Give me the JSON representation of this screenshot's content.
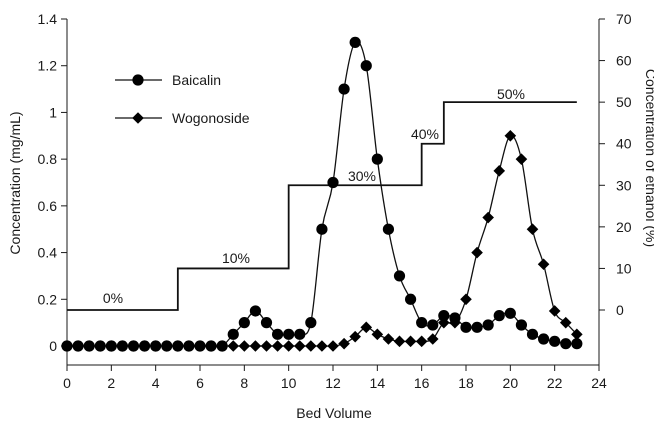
{
  "chart_data": {
    "type": "line",
    "xlabel": "Bed Volume",
    "ylabel": "Concentration (mg/mL)",
    "y2label": "Concentration of ethanol (%)",
    "xlim": [
      0,
      24
    ],
    "ylim": [
      0,
      1.4
    ],
    "y2lim": [
      0,
      70
    ],
    "x_ticks": [
      "0",
      "2",
      "4",
      "6",
      "8",
      "10",
      "12",
      "14",
      "16",
      "18",
      "20",
      "22",
      "24"
    ],
    "y_ticks": [
      "0",
      "0.2",
      "0.4",
      "0.6",
      "0.8",
      "1",
      "1.2",
      "1.4"
    ],
    "y2_ticks": [
      "0",
      "10",
      "20",
      "30",
      "40",
      "50",
      "60",
      "70"
    ],
    "grid": false,
    "legend": "top-left",
    "series": [
      {
        "name": "Baicalin",
        "marker": "circle",
        "x": [
          0,
          0.5,
          1,
          1.5,
          2,
          2.5,
          3,
          3.5,
          4,
          4.5,
          5,
          5.5,
          6,
          6.5,
          7,
          7.5,
          8,
          8.5,
          9,
          9.5,
          10,
          10.5,
          11,
          11.5,
          12,
          12.5,
          13,
          13.5,
          14,
          14.5,
          15,
          15.5,
          16,
          16.5,
          17,
          17.5,
          18,
          18.5,
          19,
          19.5,
          20,
          20.5,
          21,
          21.5,
          22,
          22.5,
          23
        ],
        "y": [
          0,
          0,
          0,
          0,
          0,
          0,
          0,
          0,
          0,
          0,
          0,
          0,
          0,
          0,
          0,
          0.05,
          0.1,
          0.15,
          0.1,
          0.05,
          0.05,
          0.05,
          0.1,
          0.5,
          0.7,
          1.1,
          1.3,
          1.2,
          0.8,
          0.5,
          0.3,
          0.2,
          0.1,
          0.09,
          0.13,
          0.12,
          0.08,
          0.08,
          0.09,
          0.13,
          0.14,
          0.09,
          0.05,
          0.03,
          0.02,
          0.01,
          0.01
        ]
      },
      {
        "name": "Wogonoside",
        "marker": "diamond",
        "x": [
          0,
          0.5,
          1,
          1.5,
          2,
          2.5,
          3,
          3.5,
          4,
          4.5,
          5,
          5.5,
          6,
          6.5,
          7,
          7.5,
          8,
          8.5,
          9,
          9.5,
          10,
          10.5,
          11,
          11.5,
          12,
          12.5,
          13,
          13.5,
          14,
          14.5,
          15,
          15.5,
          16,
          16.5,
          17,
          17.5,
          18,
          18.5,
          19,
          19.5,
          20,
          20.5,
          21,
          21.5,
          22,
          22.5,
          23
        ],
        "y": [
          0,
          0,
          0,
          0,
          0,
          0,
          0,
          0,
          0,
          0,
          0,
          0,
          0,
          0,
          0,
          0,
          0,
          0,
          0,
          0,
          0,
          0,
          0,
          0,
          0,
          0.01,
          0.04,
          0.08,
          0.05,
          0.03,
          0.02,
          0.02,
          0.02,
          0.03,
          0.1,
          0.1,
          0.2,
          0.4,
          0.55,
          0.75,
          0.9,
          0.8,
          0.5,
          0.35,
          0.15,
          0.1,
          0.05
        ]
      },
      {
        "name": "",
        "axis": "right",
        "type": "step",
        "x": [
          0,
          5,
          5,
          10,
          10,
          16,
          16,
          17,
          17,
          23
        ],
        "y": [
          0,
          0,
          10,
          10,
          30,
          30,
          40,
          40,
          50,
          50
        ]
      }
    ],
    "annotations": [
      "0%",
      "10%",
      "30%",
      "40%",
      "50%"
    ],
    "colors": {
      "line": "#111111",
      "marker": "#000000",
      "axis": "#1a1a1a"
    }
  }
}
